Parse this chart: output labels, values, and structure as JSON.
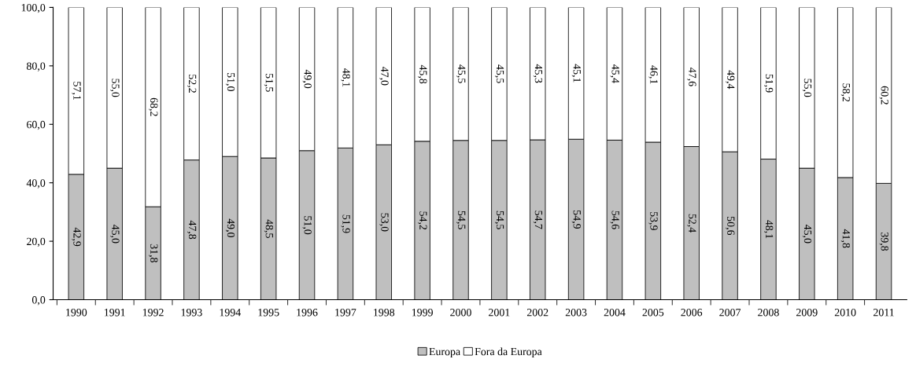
{
  "chart_data": {
    "type": "bar",
    "stacked": true,
    "categories": [
      "1990",
      "1991",
      "1992",
      "1993",
      "1994",
      "1995",
      "1996",
      "1997",
      "1998",
      "1999",
      "2000",
      "2001",
      "2002",
      "2003",
      "2004",
      "2005",
      "2006",
      "2007",
      "2008",
      "2009",
      "2010",
      "2011"
    ],
    "series": [
      {
        "name": "Europa",
        "color": "#bfbfbf",
        "values": [
          42.9,
          45.0,
          31.8,
          47.8,
          49.0,
          48.5,
          51.0,
          51.9,
          53.0,
          54.2,
          54.5,
          54.5,
          54.7,
          54.9,
          54.6,
          53.9,
          52.4,
          50.6,
          48.1,
          45.0,
          41.8,
          39.8
        ],
        "value_labels": [
          "42,9",
          "45,0",
          "31,8",
          "47,8",
          "49,0",
          "48,5",
          "51,0",
          "51,9",
          "53,0",
          "54,2",
          "54,5",
          "54,5",
          "54,7",
          "54,9",
          "54,6",
          "53,9",
          "52,4",
          "50,6",
          "48,1",
          "45,0",
          "41,8",
          "39,8"
        ]
      },
      {
        "name": "Fora da Europa",
        "color": "#ffffff",
        "values": [
          57.1,
          55.0,
          68.2,
          52.2,
          51.0,
          51.5,
          49.0,
          48.1,
          47.0,
          45.8,
          45.5,
          45.5,
          45.3,
          45.1,
          45.4,
          46.1,
          47.6,
          49.4,
          51.9,
          55.0,
          58.2,
          60.2
        ],
        "value_labels": [
          "57,1",
          "55,0",
          "68,2",
          "52,2",
          "51,0",
          "51,5",
          "49,0",
          "48,1",
          "47,0",
          "45,8",
          "45,5",
          "45,5",
          "45,3",
          "45,1",
          "45,4",
          "46,1",
          "47,6",
          "49,4",
          "51,9",
          "55,0",
          "58,2",
          "60,2"
        ]
      }
    ],
    "ylim": [
      0,
      100
    ],
    "yticks": [
      {
        "value": 0,
        "label": "0,0"
      },
      {
        "value": 20,
        "label": "20,0"
      },
      {
        "value": 40,
        "label": "40,0"
      },
      {
        "value": 60,
        "label": "60,0"
      },
      {
        "value": 80,
        "label": "80,0"
      },
      {
        "value": 100,
        "label": "100,0"
      }
    ],
    "legend": "bottom",
    "grid": false
  }
}
